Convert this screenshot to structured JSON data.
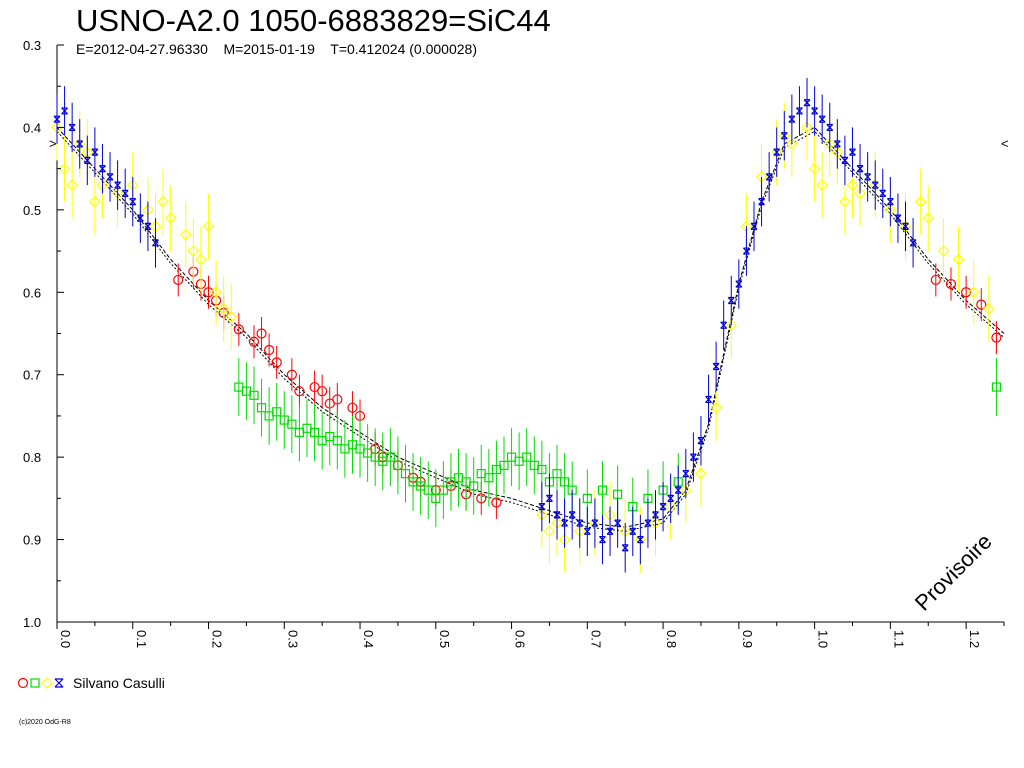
{
  "chart_data": {
    "type": "scatter",
    "title": "USNO-A2.0 1050-6883829=SiC44",
    "subtitle": "E=2012-04-27.96330    M=2015-01-19    T=0.412024 (0.000028)",
    "xlabel": "",
    "ylabel": "",
    "xlim": [
      0.0,
      1.25
    ],
    "ylim": [
      0.3,
      1.0
    ],
    "y_inverted": true,
    "x_ticks": [
      "0.0",
      "0.1",
      "0.2",
      "0.3",
      "0.4",
      "0.5",
      "0.6",
      "0.7",
      "0.8",
      "0.9",
      "1.0",
      "1.1",
      "1.2"
    ],
    "y_ticks": [
      "0.3",
      "0.4",
      "0.5",
      "0.6",
      "0.7",
      "0.8",
      "0.9",
      "1.0"
    ],
    "annotation": "Provisoire",
    "legend_label": "Silvano Casulli",
    "series": [
      {
        "color": "#ff0000",
        "marker": "circle",
        "x": [
          0.16,
          0.18,
          0.19,
          0.2,
          0.21,
          0.22,
          0.24,
          0.26,
          0.27,
          0.28,
          0.29,
          0.31,
          0.32,
          0.34,
          0.35,
          0.36,
          0.37,
          0.39,
          0.4,
          0.42,
          0.43,
          0.45,
          0.47,
          0.48,
          0.5,
          0.52,
          0.54,
          0.56,
          0.58,
          1.16,
          1.18,
          1.2,
          1.22,
          1.24
        ],
        "y": [
          0.585,
          0.575,
          0.59,
          0.6,
          0.61,
          0.625,
          0.645,
          0.66,
          0.65,
          0.67,
          0.685,
          0.7,
          0.72,
          0.715,
          0.72,
          0.735,
          0.73,
          0.74,
          0.75,
          0.79,
          0.8,
          0.81,
          0.825,
          0.83,
          0.84,
          0.835,
          0.845,
          0.85,
          0.855,
          0.585,
          0.59,
          0.6,
          0.615,
          0.655
        ],
        "err": [
          0.02,
          0.02,
          0.02,
          0.02,
          0.02,
          0.02,
          0.02,
          0.02,
          0.02,
          0.02,
          0.02,
          0.02,
          0.02,
          0.02,
          0.02,
          0.02,
          0.02,
          0.02,
          0.02,
          0.02,
          0.02,
          0.02,
          0.02,
          0.02,
          0.02,
          0.02,
          0.02,
          0.02,
          0.02,
          0.02,
          0.02,
          0.02,
          0.02,
          0.02
        ]
      },
      {
        "color": "#00dd00",
        "marker": "square",
        "x": [
          0.24,
          0.25,
          0.26,
          0.27,
          0.28,
          0.29,
          0.3,
          0.31,
          0.32,
          0.33,
          0.34,
          0.35,
          0.36,
          0.37,
          0.38,
          0.39,
          0.4,
          0.41,
          0.42,
          0.43,
          0.44,
          0.45,
          0.46,
          0.47,
          0.48,
          0.49,
          0.5,
          0.51,
          0.52,
          0.53,
          0.54,
          0.55,
          0.56,
          0.57,
          0.58,
          0.59,
          0.6,
          0.61,
          0.62,
          0.63,
          0.64,
          0.65,
          0.66,
          0.67,
          0.68,
          0.7,
          0.72,
          0.74,
          0.76,
          0.78,
          0.8,
          0.82,
          1.24
        ],
        "y": [
          0.715,
          0.72,
          0.725,
          0.74,
          0.75,
          0.745,
          0.755,
          0.76,
          0.77,
          0.765,
          0.77,
          0.78,
          0.775,
          0.78,
          0.79,
          0.785,
          0.79,
          0.795,
          0.8,
          0.805,
          0.8,
          0.81,
          0.82,
          0.83,
          0.835,
          0.84,
          0.85,
          0.84,
          0.83,
          0.825,
          0.83,
          0.835,
          0.82,
          0.825,
          0.815,
          0.81,
          0.8,
          0.805,
          0.8,
          0.81,
          0.815,
          0.83,
          0.82,
          0.83,
          0.84,
          0.85,
          0.84,
          0.845,
          0.86,
          0.85,
          0.84,
          0.83,
          0.715
        ],
        "err": [
          0.035,
          0.035,
          0.035,
          0.035,
          0.035,
          0.035,
          0.035,
          0.035,
          0.035,
          0.035,
          0.035,
          0.035,
          0.035,
          0.035,
          0.035,
          0.035,
          0.035,
          0.035,
          0.035,
          0.035,
          0.035,
          0.035,
          0.035,
          0.035,
          0.035,
          0.035,
          0.035,
          0.035,
          0.035,
          0.035,
          0.035,
          0.035,
          0.035,
          0.035,
          0.035,
          0.035,
          0.035,
          0.035,
          0.035,
          0.035,
          0.035,
          0.035,
          0.035,
          0.035,
          0.035,
          0.035,
          0.035,
          0.035,
          0.035,
          0.035,
          0.035,
          0.035,
          0.035
        ]
      },
      {
        "color": "#ffff00",
        "marker": "diamond",
        "x": [
          0.0,
          0.01,
          0.02,
          0.03,
          0.04,
          0.05,
          0.06,
          0.08,
          0.1,
          0.12,
          0.13,
          0.14,
          0.15,
          0.17,
          0.18,
          0.19,
          0.2,
          0.21,
          0.22,
          0.23,
          0.64,
          0.65,
          0.66,
          0.67,
          0.69,
          0.71,
          0.73,
          0.75,
          0.77,
          0.79,
          0.81,
          0.83,
          0.85,
          0.87,
          0.89,
          0.91,
          0.93,
          0.95,
          0.96,
          0.97,
          0.99,
          1.0,
          1.01,
          1.02,
          1.03,
          1.04,
          1.05,
          1.06,
          1.08,
          1.1,
          1.12,
          1.14,
          1.15,
          1.17,
          1.19,
          1.21,
          1.23
        ],
        "y": [
          0.4,
          0.45,
          0.47,
          0.42,
          0.43,
          0.49,
          0.47,
          0.48,
          0.47,
          0.5,
          0.52,
          0.49,
          0.51,
          0.53,
          0.55,
          0.56,
          0.52,
          0.6,
          0.62,
          0.63,
          0.87,
          0.89,
          0.88,
          0.9,
          0.89,
          0.88,
          0.87,
          0.89,
          0.9,
          0.88,
          0.86,
          0.84,
          0.82,
          0.74,
          0.64,
          0.52,
          0.46,
          0.43,
          0.41,
          0.42,
          0.4,
          0.45,
          0.47,
          0.42,
          0.43,
          0.49,
          0.47,
          0.48,
          0.47,
          0.5,
          0.52,
          0.49,
          0.51,
          0.55,
          0.56,
          0.6,
          0.62
        ],
        "err": [
          0.04,
          0.04,
          0.04,
          0.04,
          0.04,
          0.04,
          0.04,
          0.04,
          0.04,
          0.04,
          0.04,
          0.04,
          0.04,
          0.04,
          0.04,
          0.04,
          0.04,
          0.04,
          0.04,
          0.04,
          0.04,
          0.04,
          0.04,
          0.04,
          0.04,
          0.04,
          0.04,
          0.04,
          0.04,
          0.04,
          0.04,
          0.04,
          0.04,
          0.04,
          0.04,
          0.04,
          0.04,
          0.04,
          0.04,
          0.04,
          0.04,
          0.04,
          0.04,
          0.04,
          0.04,
          0.04,
          0.04,
          0.04,
          0.04,
          0.04,
          0.04,
          0.04,
          0.04,
          0.04,
          0.04,
          0.04,
          0.04
        ]
      },
      {
        "color": "#0000dd",
        "marker": "x",
        "x": [
          0.0,
          0.01,
          0.02,
          0.03,
          0.04,
          0.05,
          0.06,
          0.07,
          0.08,
          0.09,
          0.1,
          0.11,
          0.12,
          0.13,
          0.64,
          0.65,
          0.66,
          0.67,
          0.68,
          0.69,
          0.7,
          0.71,
          0.72,
          0.73,
          0.74,
          0.75,
          0.76,
          0.77,
          0.78,
          0.79,
          0.8,
          0.81,
          0.82,
          0.83,
          0.84,
          0.85,
          0.86,
          0.87,
          0.88,
          0.89,
          0.9,
          0.91,
          0.92,
          0.93,
          0.94,
          0.95,
          0.96,
          0.97,
          0.98,
          0.99,
          1.0,
          1.01,
          1.02,
          1.03,
          1.04,
          1.05,
          1.06,
          1.07,
          1.08,
          1.09,
          1.1,
          1.11,
          1.12,
          1.13
        ],
        "y": [
          0.39,
          0.38,
          0.4,
          0.42,
          0.44,
          0.43,
          0.45,
          0.46,
          0.47,
          0.48,
          0.49,
          0.51,
          0.52,
          0.54,
          0.86,
          0.85,
          0.87,
          0.88,
          0.87,
          0.88,
          0.89,
          0.88,
          0.9,
          0.89,
          0.88,
          0.91,
          0.89,
          0.9,
          0.88,
          0.87,
          0.86,
          0.85,
          0.84,
          0.82,
          0.8,
          0.78,
          0.73,
          0.69,
          0.64,
          0.61,
          0.59,
          0.55,
          0.52,
          0.49,
          0.46,
          0.43,
          0.41,
          0.39,
          0.38,
          0.37,
          0.38,
          0.39,
          0.4,
          0.42,
          0.44,
          0.43,
          0.45,
          0.46,
          0.47,
          0.48,
          0.49,
          0.51,
          0.52,
          0.54
        ],
        "err": [
          0.03,
          0.03,
          0.03,
          0.03,
          0.03,
          0.03,
          0.03,
          0.03,
          0.03,
          0.03,
          0.03,
          0.03,
          0.03,
          0.03,
          0.03,
          0.03,
          0.03,
          0.03,
          0.03,
          0.03,
          0.03,
          0.03,
          0.03,
          0.03,
          0.03,
          0.03,
          0.03,
          0.03,
          0.03,
          0.03,
          0.03,
          0.03,
          0.03,
          0.03,
          0.03,
          0.03,
          0.03,
          0.03,
          0.03,
          0.03,
          0.03,
          0.03,
          0.03,
          0.03,
          0.03,
          0.03,
          0.03,
          0.03,
          0.03,
          0.03,
          0.03,
          0.03,
          0.03,
          0.03,
          0.03,
          0.03,
          0.03,
          0.03,
          0.03,
          0.03,
          0.03,
          0.03,
          0.03,
          0.03
        ]
      }
    ],
    "model_curve": {
      "x": [
        0.0,
        0.05,
        0.1,
        0.15,
        0.2,
        0.25,
        0.3,
        0.35,
        0.4,
        0.45,
        0.5,
        0.55,
        0.6,
        0.65,
        0.7,
        0.75,
        0.8,
        0.83,
        0.86,
        0.9,
        0.93,
        0.96,
        1.0,
        1.05,
        1.1,
        1.15,
        1.2,
        1.25
      ],
      "y": [
        0.4,
        0.45,
        0.5,
        0.56,
        0.61,
        0.65,
        0.7,
        0.74,
        0.77,
        0.8,
        0.82,
        0.84,
        0.85,
        0.865,
        0.88,
        0.885,
        0.875,
        0.84,
        0.76,
        0.59,
        0.49,
        0.42,
        0.4,
        0.45,
        0.5,
        0.56,
        0.61,
        0.65
      ]
    }
  }
}
